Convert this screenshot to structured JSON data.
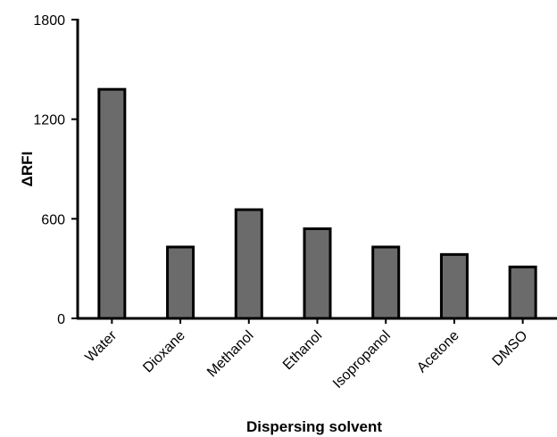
{
  "chart_data": {
    "type": "bar",
    "title": "",
    "xlabel": "Dispersing solvent",
    "ylabel": "ΔRFI",
    "categories": [
      "Water",
      "Dioxane",
      "Methanol",
      "Ethanol",
      "Isopropanol",
      "Acetone",
      "DMSO"
    ],
    "values": [
      1380,
      430,
      655,
      540,
      430,
      385,
      310
    ],
    "ylim": [
      0,
      1800
    ],
    "yticks": [
      0,
      600,
      1200,
      1800
    ],
    "grid": false,
    "legend": "none",
    "colors": {
      "bar_fill": "#6b6b6b",
      "bar_stroke": "#000000",
      "axis": "#000000"
    }
  }
}
